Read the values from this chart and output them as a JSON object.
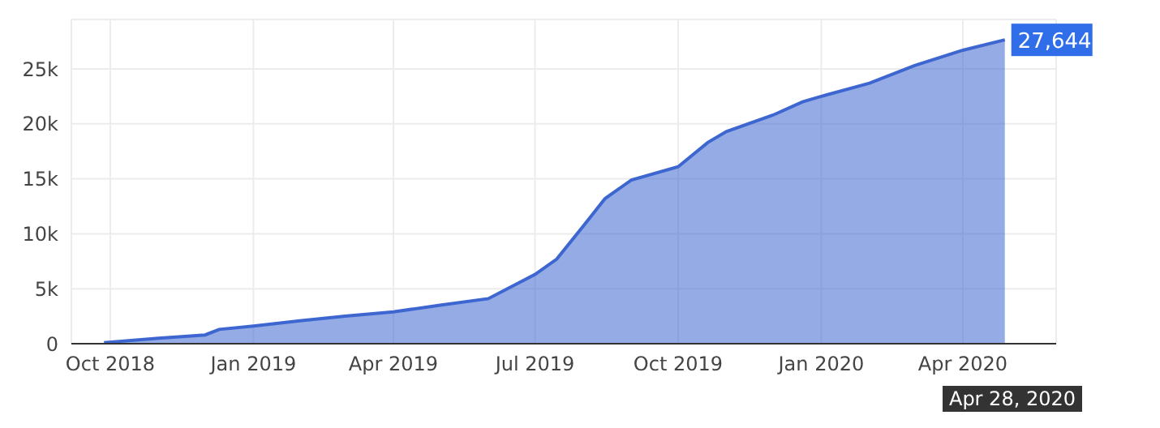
{
  "chart_data": {
    "type": "area",
    "x": [
      "2018-09-27",
      "2018-11-01",
      "2018-12-01",
      "2018-12-10",
      "2019-01-01",
      "2019-02-01",
      "2019-03-01",
      "2019-04-01",
      "2019-05-01",
      "2019-06-01",
      "2019-07-01",
      "2019-07-15",
      "2019-08-01",
      "2019-08-15",
      "2019-09-01",
      "2019-10-01",
      "2019-10-20",
      "2019-11-01",
      "2019-12-01",
      "2019-12-20",
      "2020-01-01",
      "2020-02-01",
      "2020-03-01",
      "2020-04-01",
      "2020-04-28"
    ],
    "series": [
      {
        "color": "#3d66d0",
        "values": [
          100,
          500,
          800,
          1300,
          1600,
          2100,
          2500,
          2900,
          3500,
          4100,
          6300,
          7700,
          10700,
          13200,
          14900,
          16100,
          18300,
          19300,
          20800,
          22000,
          22500,
          23700,
          25300,
          26700,
          27644
        ]
      }
    ],
    "xlim": [
      "2018-09-06",
      "2020-05-31"
    ],
    "xticks": [
      {
        "value": "2018-10-01",
        "label": "Oct 2018"
      },
      {
        "value": "2019-01-01",
        "label": "Jan 2019"
      },
      {
        "value": "2019-04-01",
        "label": "Apr 2019"
      },
      {
        "value": "2019-07-01",
        "label": "Jul 2019"
      },
      {
        "value": "2019-10-01",
        "label": "Oct 2019"
      },
      {
        "value": "2020-01-01",
        "label": "Jan 2020"
      },
      {
        "value": "2020-04-01",
        "label": "Apr 2020"
      }
    ],
    "ylim": [
      0,
      29500
    ],
    "yticks": [
      0,
      {
        "value": 5000,
        "label": "5k"
      },
      {
        "value": 10000,
        "label": "10k"
      },
      {
        "value": 15000,
        "label": "15k"
      },
      {
        "value": 20000,
        "label": "20k"
      },
      {
        "value": 25000,
        "label": "25k"
      }
    ],
    "grid": true,
    "annotations": [
      {
        "text": "27,644",
        "x": "2020-04-28",
        "y": 27644
      },
      "Apr 28, 2020"
    ]
  }
}
